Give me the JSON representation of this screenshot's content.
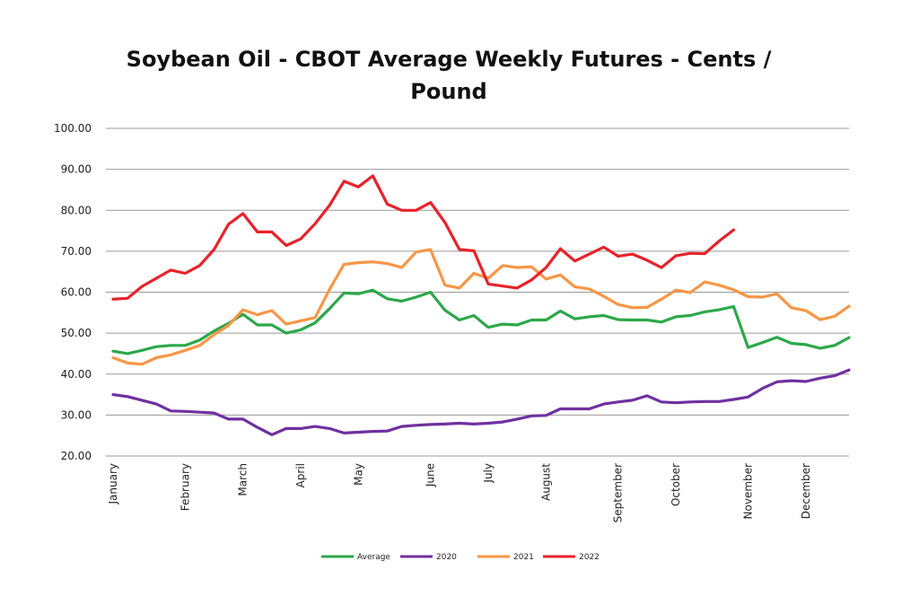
{
  "chart_data": {
    "type": "line",
    "title": "Soybean Oil - CBOT Average Weekly Futures - Cents / Pound",
    "xlabel": "",
    "ylabel": "",
    "ylim": [
      20,
      100
    ],
    "y_ticks": [
      "100.00",
      "90.00",
      "80.00",
      "70.00",
      "60.00",
      "50.00",
      "40.00",
      "30.00",
      "20.00"
    ],
    "x_week_count": 52,
    "x_tick_labels": [
      {
        "label": "January",
        "week": 1
      },
      {
        "label": "February",
        "week": 6
      },
      {
        "label": "March",
        "week": 10
      },
      {
        "label": "April",
        "week": 14
      },
      {
        "label": "May",
        "week": 18
      },
      {
        "label": "June",
        "week": 23
      },
      {
        "label": "July",
        "week": 27
      },
      {
        "label": "August",
        "week": 31
      },
      {
        "label": "September",
        "week": 36
      },
      {
        "label": "October",
        "week": 40
      },
      {
        "label": "November",
        "week": 45
      },
      {
        "label": "December",
        "week": 49
      }
    ],
    "grid": true,
    "legend_position": "bottom",
    "series": [
      {
        "name": "Average",
        "color": "#2ca84a",
        "values": [
          45.6,
          45.0,
          45.8,
          46.7,
          47.0,
          47.0,
          48.3,
          50.5,
          52.4,
          54.6,
          52.0,
          52.0,
          50.0,
          50.8,
          52.5,
          56.0,
          59.8,
          59.6,
          60.5,
          58.4,
          57.8,
          58.8,
          60.0,
          55.6,
          53.2,
          54.3,
          51.4,
          52.2,
          52.0,
          53.2,
          53.2,
          55.4,
          53.5,
          54.0,
          54.3,
          53.3,
          53.2,
          53.2,
          52.7,
          54.0,
          54.3,
          55.2,
          55.7,
          56.5,
          46.5,
          47.7,
          49.0,
          47.5,
          47.2,
          46.3,
          47.0,
          48.9
        ]
      },
      {
        "name": "2020",
        "color": "#7030a0",
        "values": [
          35.0,
          34.5,
          33.6,
          32.7,
          31.0,
          30.9,
          30.7,
          30.5,
          29.0,
          29.0,
          27.0,
          25.2,
          26.7,
          26.7,
          27.2,
          26.7,
          25.6,
          25.8,
          26.0,
          26.1,
          27.2,
          27.5,
          27.7,
          27.8,
          28.0,
          27.8,
          28.0,
          28.3,
          29.0,
          29.8,
          29.9,
          31.5,
          31.5,
          31.5,
          32.7,
          33.2,
          33.6,
          34.7,
          33.2,
          33.0,
          33.2,
          33.3,
          33.3,
          33.8,
          34.4,
          36.5,
          38.1,
          38.4,
          38.2,
          39.0,
          39.6,
          41.0
        ]
      },
      {
        "name": "2021",
        "color": "#f79646",
        "values": [
          44.0,
          42.7,
          42.4,
          44.0,
          44.7,
          45.8,
          47.0,
          49.6,
          51.9,
          55.7,
          54.5,
          55.5,
          52.2,
          53.0,
          53.8,
          60.7,
          66.8,
          67.2,
          67.4,
          67.0,
          66.0,
          69.8,
          70.4,
          61.7,
          61.0,
          64.6,
          63.4,
          66.5,
          66.0,
          66.2,
          63.2,
          64.2,
          61.3,
          60.8,
          59.0,
          57.0,
          56.2,
          56.3,
          58.3,
          60.5,
          59.9,
          62.5,
          61.7,
          60.6,
          58.9,
          58.8,
          59.6,
          56.2,
          55.5,
          53.3,
          54.1,
          56.6
        ]
      },
      {
        "name": "2022",
        "color": "#e8222a",
        "values": [
          58.3,
          58.5,
          61.4,
          63.4,
          65.4,
          64.6,
          66.5,
          70.4,
          76.6,
          79.2,
          74.7,
          74.7,
          71.4,
          73.0,
          76.7,
          81.2,
          87.1,
          85.7,
          88.4,
          81.5,
          80.0,
          80.0,
          81.9,
          77.0,
          70.4,
          70.1,
          62.0,
          61.5,
          61.0,
          63.0,
          66.0,
          70.6,
          67.6,
          69.3,
          71.0,
          68.8,
          69.3,
          67.8,
          66.0,
          68.9,
          69.5,
          69.4,
          72.5,
          75.2
        ]
      }
    ]
  }
}
